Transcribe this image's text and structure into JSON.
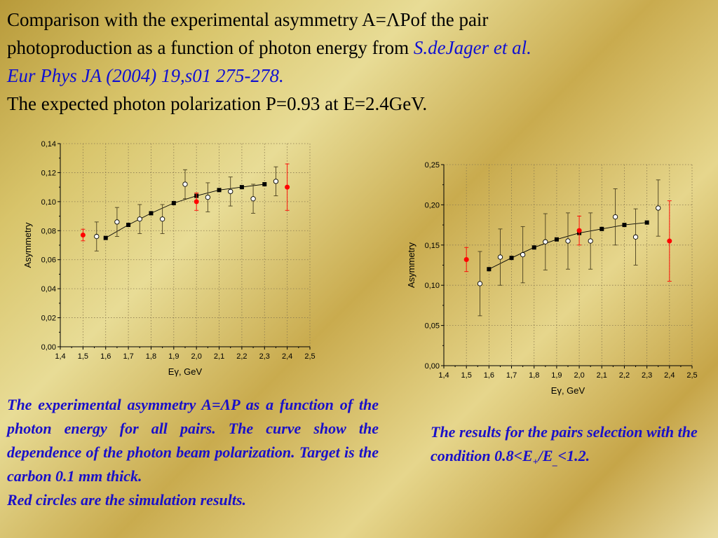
{
  "header": {
    "line1": "Comparison with the experimental asymmetry A=ΛPof the pair",
    "line2a": "photoproduction as a function of photon energy from ",
    "ref1": "S.deJager et al.",
    "ref2": "Eur Phys JA (2004) 19,s01 275-278.",
    "line3": "The expected photon polarization P=0.93 at E=2.4GeV."
  },
  "captions": {
    "left_text": "The experimental asymmetry A=ΛP as a function of the photon energy for all pairs. The curve show the dependence of the photon beam polarization. Target is the carbon 0.1 mm thick.",
    "left_red": "Red circles are the simulation results.",
    "right_a": "The results for the pairs selection with the condition 0.8<E",
    "right_sub1": "+",
    "right_b": "/E",
    "right_sub2": "_",
    "right_c": "<1.2."
  },
  "colors": {
    "experiment": "#ffffff",
    "polarization": "#000000",
    "simulation": "#ff0000",
    "caption": "#1a10c8",
    "reference": "#1010d0"
  },
  "chart_data": [
    {
      "type": "scatter",
      "xlabel": "Eγ, GeV",
      "ylabel": "Asymmetry",
      "xlim": [
        1.4,
        2.5
      ],
      "ylim": [
        0,
        0.14
      ],
      "xticks": [
        "1,4",
        "1,5",
        "1,6",
        "1,7",
        "1,8",
        "1,9",
        "2,0",
        "2,1",
        "2,2",
        "2,3",
        "2,4",
        "2,5"
      ],
      "yticks": [
        "0,00",
        "0,02",
        "0,04",
        "0,06",
        "0,08",
        "0,10",
        "0,12",
        "0,14"
      ],
      "grid": true,
      "series": [
        {
          "kind": "open-circles-errorbars",
          "points": [
            {
              "x": 1.56,
              "y": 0.076,
              "err": 0.01
            },
            {
              "x": 1.65,
              "y": 0.086,
              "err": 0.01
            },
            {
              "x": 1.75,
              "y": 0.088,
              "err": 0.01
            },
            {
              "x": 1.85,
              "y": 0.088,
              "err": 0.01
            },
            {
              "x": 1.95,
              "y": 0.112,
              "err": 0.01
            },
            {
              "x": 2.05,
              "y": 0.103,
              "err": 0.01
            },
            {
              "x": 2.15,
              "y": 0.107,
              "err": 0.01
            },
            {
              "x": 2.25,
              "y": 0.102,
              "err": 0.01
            },
            {
              "x": 2.35,
              "y": 0.114,
              "err": 0.01
            }
          ]
        },
        {
          "kind": "filled-squares-line",
          "points": [
            {
              "x": 1.6,
              "y": 0.075
            },
            {
              "x": 1.7,
              "y": 0.084
            },
            {
              "x": 1.8,
              "y": 0.092
            },
            {
              "x": 1.9,
              "y": 0.099
            },
            {
              "x": 2.0,
              "y": 0.104
            },
            {
              "x": 2.1,
              "y": 0.108
            },
            {
              "x": 2.2,
              "y": 0.11
            },
            {
              "x": 2.3,
              "y": 0.112
            }
          ]
        },
        {
          "kind": "red-circles-errorbars",
          "points": [
            {
              "x": 1.5,
              "y": 0.077,
              "err": 0.004
            },
            {
              "x": 2.0,
              "y": 0.1,
              "err": 0.006
            },
            {
              "x": 2.4,
              "y": 0.11,
              "err": 0.016
            }
          ]
        }
      ]
    },
    {
      "type": "scatter",
      "xlabel": "Eγ, GeV",
      "ylabel": "Asymmetry",
      "xlim": [
        1.4,
        2.5
      ],
      "ylim": [
        0,
        0.25
      ],
      "xticks": [
        "1,4",
        "1,5",
        "1,6",
        "1,7",
        "1,8",
        "1,9",
        "2,0",
        "2,1",
        "2,2",
        "2,3",
        "2,4",
        "2,5"
      ],
      "yticks": [
        "0,00",
        "0,05",
        "0,10",
        "0,15",
        "0,20",
        "0,25"
      ],
      "grid": true,
      "series": [
        {
          "kind": "open-circles-errorbars",
          "points": [
            {
              "x": 1.56,
              "y": 0.102,
              "err": 0.04
            },
            {
              "x": 1.65,
              "y": 0.135,
              "err": 0.035
            },
            {
              "x": 1.75,
              "y": 0.138,
              "err": 0.035
            },
            {
              "x": 1.85,
              "y": 0.154,
              "err": 0.035
            },
            {
              "x": 1.95,
              "y": 0.155,
              "err": 0.035
            },
            {
              "x": 2.05,
              "y": 0.155,
              "err": 0.035
            },
            {
              "x": 2.16,
              "y": 0.185,
              "err": 0.035
            },
            {
              "x": 2.25,
              "y": 0.16,
              "err": 0.035
            },
            {
              "x": 2.35,
              "y": 0.196,
              "err": 0.035
            }
          ]
        },
        {
          "kind": "filled-squares-line",
          "points": [
            {
              "x": 1.6,
              "y": 0.12
            },
            {
              "x": 1.7,
              "y": 0.134
            },
            {
              "x": 1.8,
              "y": 0.147
            },
            {
              "x": 1.9,
              "y": 0.157
            },
            {
              "x": 2.0,
              "y": 0.165
            },
            {
              "x": 2.1,
              "y": 0.17
            },
            {
              "x": 2.2,
              "y": 0.175
            },
            {
              "x": 2.3,
              "y": 0.178
            }
          ]
        },
        {
          "kind": "red-circles-errorbars",
          "points": [
            {
              "x": 1.5,
              "y": 0.132,
              "err": 0.015
            },
            {
              "x": 2.0,
              "y": 0.168,
              "err": 0.018
            },
            {
              "x": 2.4,
              "y": 0.155,
              "err": 0.05
            }
          ]
        }
      ]
    }
  ]
}
